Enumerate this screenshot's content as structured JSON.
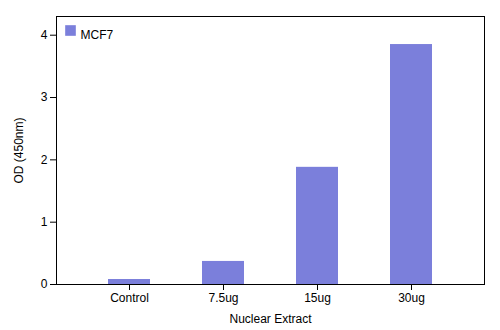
{
  "chart_data": {
    "type": "bar",
    "categories": [
      "Control",
      "7.5ug",
      "15ug",
      "30ug"
    ],
    "values": [
      0.08,
      0.37,
      1.88,
      3.85
    ],
    "color": "#7b7fdb",
    "xlabel": "Nuclear Extract",
    "ylabel": "OD (450nm)",
    "ylim": [
      0,
      4.3
    ],
    "yticks": [
      0,
      1,
      2,
      3,
      4
    ],
    "series_name": "MCF7",
    "legend": "upper left"
  }
}
